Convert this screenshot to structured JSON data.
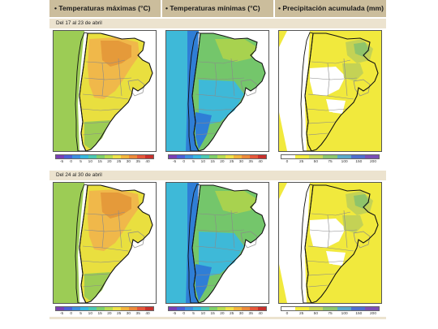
{
  "headers": [
    {
      "bullet": "•",
      "title": "Temperaturas máximas (°C)"
    },
    {
      "bullet": "•",
      "title": "Temperaturas mínimas (°C)"
    },
    {
      "bullet": "•",
      "title": "Precipitación acumulada (mm)"
    }
  ],
  "periods": [
    {
      "label": "Del 17 al 23 de abril"
    },
    {
      "label": "Del 24 al 30 de abril"
    }
  ],
  "legends": {
    "temperature": {
      "ticks": [
        "-5",
        "0",
        "5",
        "10",
        "15",
        "20",
        "25",
        "30",
        "35",
        "40"
      ],
      "colors": [
        "#7a3fb5",
        "#4b5fd6",
        "#3b8fe0",
        "#36b7e0",
        "#4cc8b2",
        "#7fcf6a",
        "#b6dc52",
        "#efe24a",
        "#f3b43c",
        "#ec8a3a",
        "#e5583a",
        "#c8302c"
      ]
    },
    "precipitation": {
      "ticks": [
        "0",
        "25",
        "50",
        "75",
        "100",
        "150",
        "200"
      ],
      "colors": [
        "#ffffff",
        "#f2ec3e",
        "#c8d85a",
        "#8cc66e",
        "#5aa9c9",
        "#4f6fcf",
        "#7a4fb5"
      ]
    }
  },
  "map_colors": {
    "tmax_hot": "#e59a3a",
    "tmax_warm": "#f0b84a",
    "tmax_mild": "#e9df3f",
    "tmax_cool": "#9ccc55",
    "tmin_cold": "#2f7ed6",
    "tmin_cool": "#3eb9d8",
    "tmin_mild": "#74c66b",
    "tmin_warm": "#a8d24f",
    "pp_zero": "#ffffff",
    "pp_low": "#f1e93d",
    "pp_mid": "#c4d255",
    "pp_high": "#8fc46a",
    "land_outline": "#111111",
    "province_lines": "#8a8a8a"
  }
}
